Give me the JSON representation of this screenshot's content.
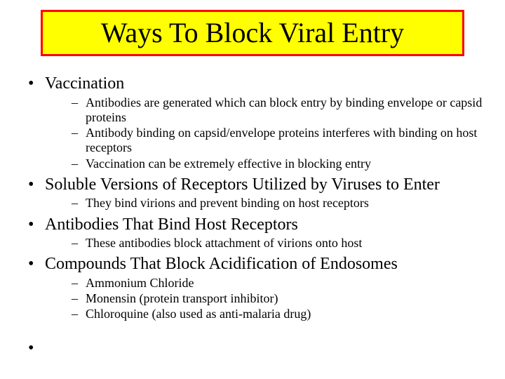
{
  "colors": {
    "title_bg": "#ffff00",
    "title_border": "#ff0000",
    "text": "#000000",
    "slide_bg": "#ffffff"
  },
  "typography": {
    "title_fontsize": 40,
    "level1_fontsize": 24,
    "level2_fontsize": 18,
    "font_family": "Times New Roman"
  },
  "title": "Ways To Block Viral Entry",
  "bullets": [
    {
      "text": "Vaccination",
      "sub": [
        "Antibodies are generated which can block entry by binding envelope or capsid proteins",
        "Antibody binding on capsid/envelope proteins interferes with binding on host receptors",
        "Vaccination can be extremely effective in blocking entry"
      ]
    },
    {
      "text": "Soluble Versions of Receptors Utilized by Viruses to Enter",
      "sub": [
        "They bind virions and prevent binding on host receptors"
      ]
    },
    {
      "text": "Antibodies That Bind Host Receptors",
      "sub": [
        "These antibodies block attachment of virions onto host"
      ]
    },
    {
      "text": "Compounds That Block Acidification of Endosomes",
      "sub": [
        "Ammonium Chloride",
        "Monensin (protein transport inhibitor)",
        "Chloroquine (also used as anti-malaria drug)"
      ]
    },
    {
      "text": "",
      "sub": []
    }
  ]
}
